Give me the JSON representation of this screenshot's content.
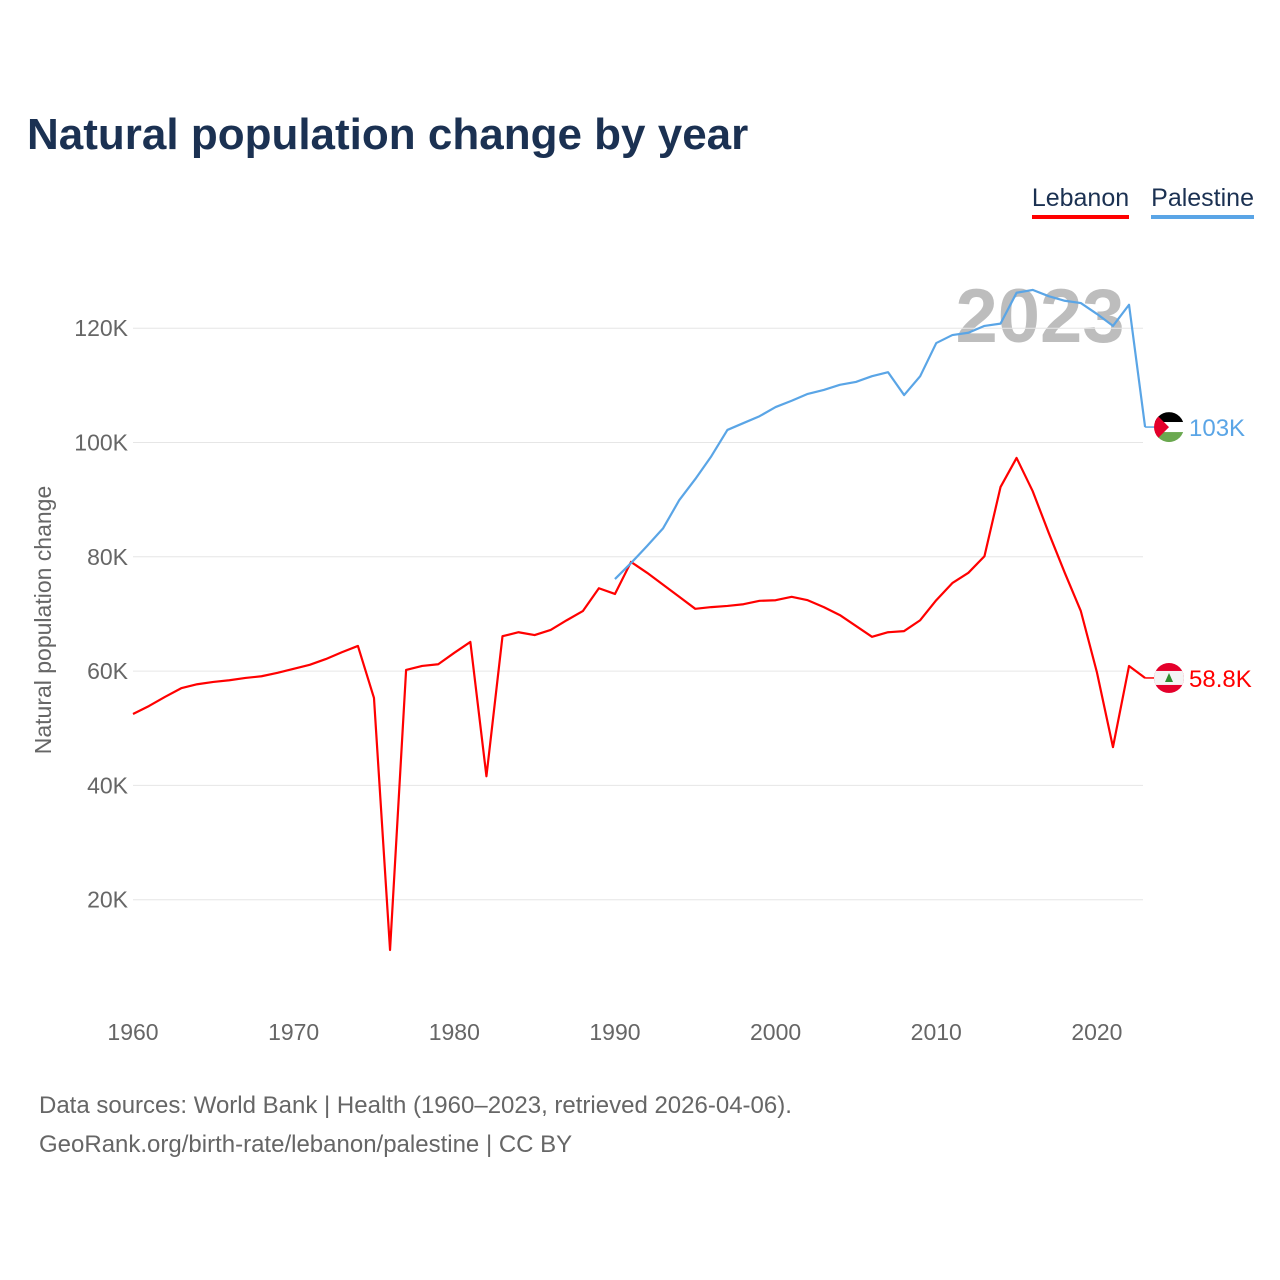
{
  "title": "Natural population change by year",
  "legend": [
    {
      "label": "Lebanon",
      "color": "#ff0000"
    },
    {
      "label": "Palestine",
      "color": "#5aa5e6"
    }
  ],
  "year_watermark": "2023",
  "footer": {
    "line1": "Data sources: World Bank | Health (1960–2023, retrieved 2026-04-06).",
    "line2": "GeoRank.org/birth-rate/lebanon/palestine | CC BY"
  },
  "chart_data": {
    "type": "line",
    "title": "Natural population change by year",
    "xlabel": "",
    "ylabel": "Natural population change",
    "xlim": [
      1960,
      2023
    ],
    "ylim": [
      0,
      130000
    ],
    "x_ticks": [
      1960,
      1970,
      1980,
      1990,
      2000,
      2010,
      2020
    ],
    "y_ticks": [
      {
        "v": 20000,
        "label": "20K"
      },
      {
        "v": 40000,
        "label": "40K"
      },
      {
        "v": 60000,
        "label": "60K"
      },
      {
        "v": 80000,
        "label": "80K"
      },
      {
        "v": 100000,
        "label": "100K"
      },
      {
        "v": 120000,
        "label": "120K"
      }
    ],
    "grid": true,
    "series": [
      {
        "name": "Lebanon",
        "color": "#ff0000",
        "start": 1960,
        "end_label": "58.8K",
        "flag": "lebanon",
        "values": [
          52.5,
          53.9,
          55.5,
          57.0,
          57.7,
          58.1,
          58.4,
          58.8,
          59.1,
          59.7,
          60.4,
          61.1,
          62.1,
          63.3,
          64.4,
          55.3,
          11.2,
          60.2,
          60.9,
          61.2,
          63.2,
          65.1,
          41.6,
          66.1,
          66.8,
          66.3,
          67.2,
          68.9,
          70.5,
          74.5,
          73.5,
          79.1,
          77.2,
          75.1,
          73.0,
          70.9,
          71.2,
          71.4,
          71.7,
          72.3,
          72.4,
          73.0,
          72.4,
          71.2,
          69.8,
          67.9,
          66.0,
          66.8,
          67.0,
          68.9,
          72.4,
          75.4,
          77.2,
          80.1,
          92.2,
          97.3,
          91.5,
          84.2,
          77.2,
          70.5,
          59.8,
          46.7,
          60.9,
          58.8
        ]
      },
      {
        "name": "Palestine",
        "color": "#5aa5e6",
        "start": 1990,
        "end_label": "103K",
        "flag": "palestine",
        "values": [
          76.1,
          78.9,
          81.9,
          85.0,
          89.9,
          93.6,
          97.6,
          102.2,
          103.4,
          104.6,
          106.2,
          107.3,
          108.5,
          109.2,
          110.1,
          110.6,
          111.6,
          112.3,
          108.3,
          111.6,
          117.4,
          118.8,
          119.2,
          120.4,
          120.8,
          126.2,
          126.7,
          125.6,
          124.8,
          124.4,
          122.5,
          120.4,
          124.1,
          102.7
        ]
      }
    ],
    "value_unit": "thousands"
  }
}
